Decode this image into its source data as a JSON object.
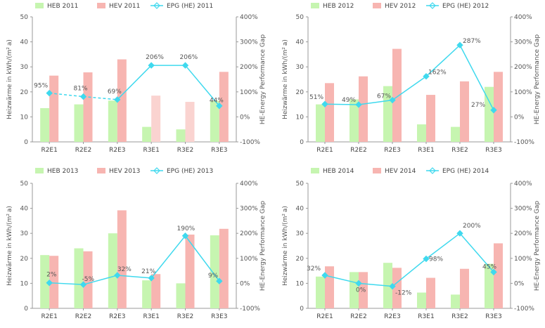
{
  "chart_data": [
    {
      "type": "bar",
      "categories": [
        "R2E1",
        "R2E2",
        "R2E3",
        "R3E1",
        "R3E2",
        "R3E3"
      ],
      "series": [
        {
          "name": "HEB 2011",
          "values": [
            13.5,
            15,
            16.5,
            6,
            5,
            16.5
          ]
        },
        {
          "name": "HEV 2011",
          "values": [
            26.5,
            27.8,
            33,
            18.5,
            16,
            28
          ]
        },
        {
          "name": "EPG (HE) 2011",
          "values": [
            95,
            81,
            69,
            206,
            206,
            44
          ],
          "labels": [
            "95%",
            "81%",
            "69%",
            "206%",
            "206%",
            "44%"
          ],
          "axis": "right",
          "style": "dashed-solid"
        }
      ],
      "ylabel": "Heizwärme in kWh/(m² a)",
      "y2label": "HE-Energy Performance Gap",
      "ylim": [
        0,
        50
      ],
      "yticks": [
        "0",
        "10",
        "20",
        "30",
        "40",
        "50"
      ],
      "y2lim": [
        -100,
        400
      ],
      "y2ticks": [
        "-100%",
        "0%",
        "100%",
        "200%",
        "300%",
        "400%"
      ],
      "legend": "top"
    },
    {
      "type": "bar",
      "categories": [
        "R2E1",
        "R2E2",
        "R2E3",
        "R3E1",
        "R3E2",
        "R3E3"
      ],
      "series": [
        {
          "name": "HEB 2012",
          "values": [
            15,
            17,
            22.3,
            7,
            6,
            22
          ]
        },
        {
          "name": "HEV 2012",
          "values": [
            23.5,
            26.2,
            37.2,
            18.8,
            24.2,
            28
          ]
        },
        {
          "name": "EPG (HE) 2012",
          "values": [
            51,
            49,
            67,
            162,
            287,
            27
          ],
          "labels": [
            "51%",
            "49%",
            "67%",
            "162%",
            "287%",
            "27%"
          ],
          "axis": "right"
        }
      ],
      "ylabel": "Heizwärme in kWh/(m² a)",
      "y2label": "HE-Energy Performance Gap",
      "ylim": [
        0,
        50
      ],
      "yticks": [
        "0",
        "10",
        "20",
        "30",
        "40",
        "50"
      ],
      "y2lim": [
        -100,
        400
      ],
      "y2ticks": [
        "-100%",
        "0%",
        "100%",
        "200%",
        "300%",
        "400%"
      ],
      "legend": "top"
    },
    {
      "type": "bar",
      "categories": [
        "R2E1",
        "R2E2",
        "R2E3",
        "R3E1",
        "R3E2",
        "R3E3"
      ],
      "series": [
        {
          "name": "HEB 2013",
          "values": [
            21.3,
            24,
            30,
            11.2,
            10,
            29.2
          ]
        },
        {
          "name": "HEV 2013",
          "values": [
            21,
            22.8,
            39.2,
            13.7,
            29.5,
            31.8
          ]
        },
        {
          "name": "EPG (HE) 2013",
          "values": [
            2,
            -5,
            32,
            21,
            190,
            9
          ],
          "labels": [
            "2%",
            "-5%",
            "32%",
            "21%",
            "190%",
            "9%"
          ],
          "axis": "right"
        }
      ],
      "ylabel": "Heizwärme in kWh/(m² a)",
      "y2label": "HE-Energy Performance Gap",
      "ylim": [
        0,
        50
      ],
      "yticks": [
        "0",
        "10",
        "20",
        "30",
        "40",
        "50"
      ],
      "y2lim": [
        -100,
        400
      ],
      "y2ticks": [
        "-100%",
        "0%",
        "100%",
        "200%",
        "300%",
        "400%"
      ],
      "legend": "top"
    },
    {
      "type": "bar",
      "categories": [
        "R2E1",
        "R2E2",
        "R2E3",
        "R3E1",
        "R3E2",
        "R3E3"
      ],
      "series": [
        {
          "name": "HEB 2014",
          "values": [
            12.7,
            14.5,
            18.2,
            6.3,
            5.5,
            17.8
          ]
        },
        {
          "name": "HEV 2014",
          "values": [
            16.8,
            14.5,
            16.2,
            12.2,
            15.8,
            26
          ]
        },
        {
          "name": "EPG (HE) 2014",
          "values": [
            32,
            0,
            -12,
            98,
            200,
            45
          ],
          "labels": [
            "32%",
            "0%",
            "-12%",
            "98%",
            "200%",
            "45%"
          ],
          "axis": "right"
        }
      ],
      "ylabel": "Heizwärme in kWh/(m² a)",
      "y2label": "HE-Energy Performance Gap",
      "ylim": [
        0,
        50
      ],
      "yticks": [
        "0",
        "10",
        "20",
        "30",
        "40",
        "50"
      ],
      "y2lim": [
        -100,
        400
      ],
      "y2ticks": [
        "-100%",
        "0%",
        "100%",
        "200%",
        "300%",
        "400%"
      ],
      "legend": "top"
    }
  ],
  "colors": {
    "heb": "#c6f5b0",
    "hev": "#f7b5b1",
    "hev_light": "#fad3d0",
    "epg": "#3fd9ee",
    "axis": "#999999",
    "text": "#555555"
  }
}
